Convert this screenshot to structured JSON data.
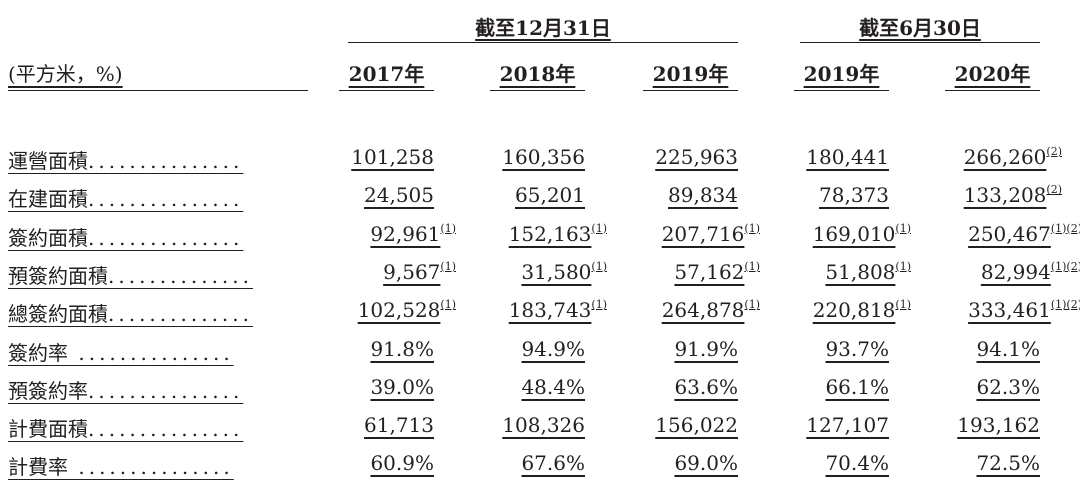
{
  "header": {
    "group1": "截至12月31日",
    "group2": "截至6月30日",
    "unit_label": "(平方米，%)",
    "years": [
      "2017年",
      "2018年",
      "2019年",
      "2019年",
      "2020年"
    ]
  },
  "rows": [
    {
      "label": "運營面積",
      "dots": "...............",
      "values": [
        "101,258",
        "160,356",
        "225,963",
        "180,441",
        "266,260"
      ],
      "notes": [
        "",
        "",
        "",
        "",
        "(2)"
      ]
    },
    {
      "label": "在建面積",
      "dots": "...............",
      "values": [
        "24,505",
        "65,201",
        "89,834",
        "78,373",
        "133,208"
      ],
      "notes": [
        "",
        "",
        "",
        "",
        "(2)"
      ]
    },
    {
      "label": "簽約面積",
      "dots": "...............",
      "values": [
        "92,961",
        "152,163",
        "207,716",
        "169,010",
        "250,467"
      ],
      "notes": [
        "(1)",
        "(1)",
        "(1)",
        "(1)",
        "(1)(2)"
      ]
    },
    {
      "label": "預簽約面積",
      "dots": "..............",
      "values": [
        "9,567",
        "31,580",
        "57,162",
        "51,808",
        "82,994"
      ],
      "notes": [
        "(1)",
        "(1)",
        "(1)",
        "(1)",
        "(1)(2)"
      ]
    },
    {
      "label": "總簽約面積",
      "dots": "..............",
      "values": [
        "102,528",
        "183,743",
        "264,878",
        "220,818",
        "333,461"
      ],
      "notes": [
        "(1)",
        "(1)",
        "(1)",
        "(1)",
        "(1)(2)"
      ]
    },
    {
      "label": "簽約率",
      "dots": " ...............",
      "values": [
        "91.8%",
        "94.9%",
        "91.9%",
        "93.7%",
        "94.1%"
      ],
      "notes": [
        "",
        "",
        "",
        "",
        ""
      ]
    },
    {
      "label": "預簽約率",
      "dots": "...............",
      "values": [
        "39.0%",
        "48.4%",
        "63.6%",
        "66.1%",
        "62.3%"
      ],
      "notes": [
        "",
        "",
        "",
        "",
        ""
      ]
    },
    {
      "label": "計費面積",
      "dots": "...............",
      "values": [
        "61,713",
        "108,326",
        "156,022",
        "127,107",
        "193,162"
      ],
      "notes": [
        "",
        "",
        "",
        "",
        ""
      ]
    },
    {
      "label": "計費率",
      "dots": " ...............",
      "values": [
        "60.9%",
        "67.6%",
        "69.0%",
        "70.4%",
        "72.5%"
      ],
      "notes": [
        "",
        "",
        "",
        "",
        ""
      ]
    }
  ]
}
